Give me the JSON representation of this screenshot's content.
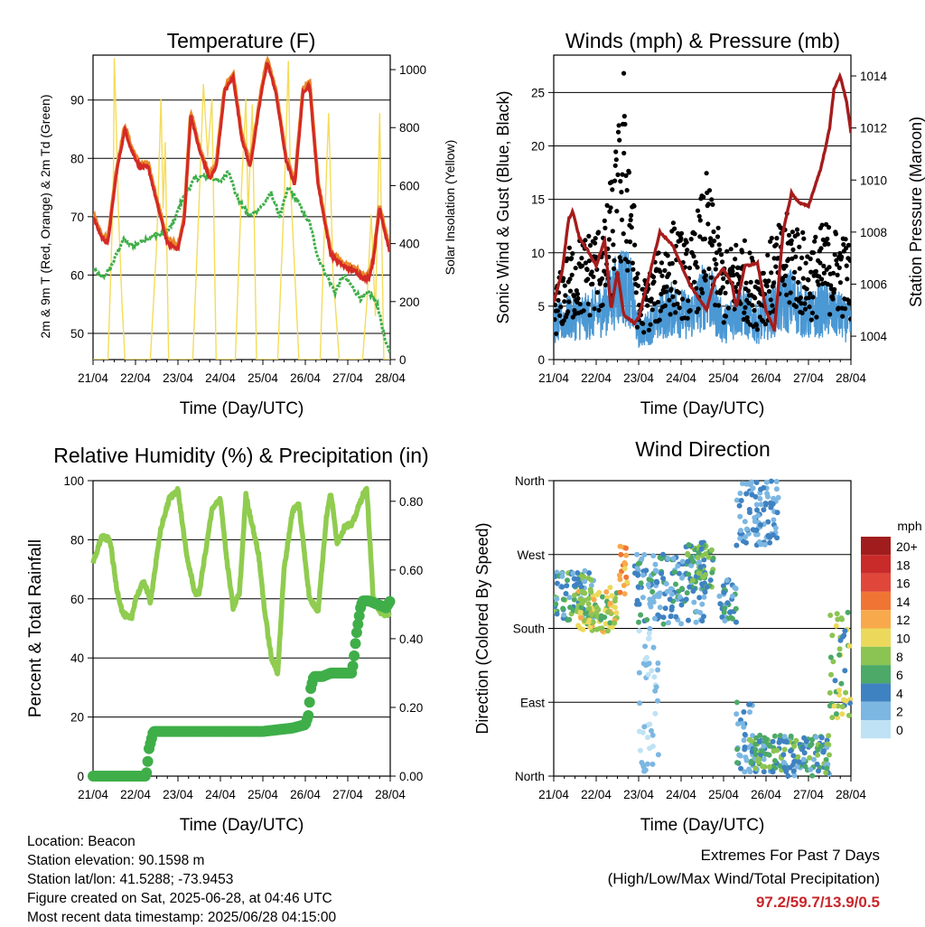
{
  "colors": {
    "temp2m": "#e8882a",
    "temp9m": "#d42a26",
    "dewpoint": "#3fae49",
    "solar": "#f5dc5a",
    "wind": "#4a98d4",
    "gust": "#000000",
    "pressure": "#a51c1c",
    "rh": "#8fcc4f",
    "precip": "#3fae49"
  },
  "x_ticks": [
    "21/04",
    "22/04",
    "23/04",
    "24/04",
    "25/04",
    "26/04",
    "27/04",
    "28/04"
  ],
  "speed_legend": {
    "unit": "mph",
    "labels": [
      "20+",
      "18",
      "16",
      "14",
      "12",
      "10",
      "8",
      "6",
      "4",
      "2",
      "0"
    ],
    "colors": [
      "#a11d1d",
      "#c92a2a",
      "#e0473a",
      "#f07534",
      "#f8a94c",
      "#ecd95c",
      "#8cc453",
      "#4ca967",
      "#3f82c2",
      "#7cb7e2",
      "#bfe2f5"
    ]
  },
  "chart_data": [
    {
      "type": "line",
      "title": "Temperature (F)",
      "xlabel": "Time (Day/UTC)",
      "ylabel": "2m & 9m T (Red, Orange) & 2m Td (Green)",
      "ylabel_right": "Solar Insolation (Yellow)",
      "xlim": [
        0,
        7
      ],
      "ylim": [
        45.5,
        97.7
      ],
      "ylim_right": [
        0,
        1050
      ],
      "yticks": [
        50,
        60,
        70,
        80,
        90
      ],
      "yticks_right": [
        0,
        200,
        400,
        600,
        800,
        1000
      ],
      "grid": true,
      "series": [
        {
          "key": "temp9m",
          "x": [
            0,
            0.2,
            0.35,
            0.55,
            0.75,
            0.9,
            1.1,
            1.3,
            1.5,
            1.75,
            2.0,
            2.15,
            2.3,
            2.5,
            2.75,
            2.9,
            3.1,
            3.3,
            3.5,
            3.7,
            3.95,
            4.1,
            4.3,
            4.55,
            4.75,
            4.95,
            5.1,
            5.3,
            5.6,
            5.9,
            6.2,
            6.35,
            6.5,
            6.6,
            6.75,
            6.9,
            7.0
          ],
          "y": [
            70.5,
            67,
            66,
            78,
            85.5,
            82,
            79,
            79,
            73,
            66,
            65,
            70,
            88,
            82,
            77,
            79,
            92,
            94.5,
            84,
            79,
            91,
            97,
            92,
            80,
            76,
            92,
            93,
            76,
            64,
            62,
            61,
            60,
            60,
            63,
            72,
            67,
            64.5
          ]
        },
        {
          "key": "dewpoint",
          "x": [
            0,
            0.2,
            0.4,
            0.7,
            0.9,
            1.2,
            1.5,
            1.7,
            1.9,
            2.1,
            2.4,
            2.7,
            3.0,
            3.2,
            3.35,
            3.5,
            3.7,
            4.0,
            4.2,
            4.4,
            4.6,
            4.8,
            5.0,
            5.1,
            5.3,
            5.5,
            5.7,
            5.9,
            6.1,
            6.3,
            6.5,
            6.7,
            6.9,
            7.0
          ],
          "y": [
            61,
            59.5,
            61,
            66,
            65,
            66,
            67,
            67,
            69,
            73,
            76.5,
            77,
            76,
            78,
            74,
            72,
            70,
            72,
            74,
            70,
            75,
            73,
            70,
            69,
            63,
            60,
            57,
            60,
            58,
            56,
            57,
            55,
            48,
            47
          ]
        },
        {
          "key": "solar",
          "axis": "right",
          "x": [
            0,
            0.35,
            0.43,
            0.48,
            0.5,
            0.55,
            0.6,
            0.68,
            0.75,
            1.35,
            1.5,
            1.6,
            1.65,
            1.7,
            1.78,
            2.35,
            2.5,
            2.6,
            2.7,
            2.8,
            2.9,
            3.35,
            3.5,
            3.6,
            3.65,
            3.75,
            3.85,
            4.35,
            4.5,
            4.6,
            4.65,
            4.75,
            4.85,
            5.35,
            5.45,
            5.55,
            5.65,
            5.8,
            6.35,
            6.45,
            6.55,
            6.65,
            6.75,
            6.85,
            7.0
          ],
          "y": [
            0,
            0,
            350,
            650,
            1040,
            800,
            500,
            200,
            0,
            0,
            400,
            900,
            520,
            750,
            0,
            0,
            550,
            950,
            700,
            900,
            0,
            0,
            600,
            900,
            500,
            880,
            0,
            0,
            550,
            1030,
            600,
            300,
            0,
            0,
            450,
            850,
            300,
            0,
            0,
            200,
            500,
            150,
            850,
            0,
            0
          ]
        }
      ]
    },
    {
      "type": "line",
      "title": "Winds (mph) & Pressure (mb)",
      "xlabel": "Time (Day/UTC)",
      "ylabel": "Sonic Wind & Gust (Blue, Black)",
      "ylabel_right": "Station Pressure (Maroon)",
      "xlim": [
        0,
        7
      ],
      "ylim": [
        0,
        28.5
      ],
      "ylim_right": [
        1003.1,
        1014.8
      ],
      "yticks": [
        0,
        5,
        10,
        15,
        20,
        25
      ],
      "yticks_right": [
        1004,
        1006,
        1008,
        1010,
        1012,
        1014
      ],
      "grid": true,
      "series": [
        {
          "key": "pressure",
          "axis": "right",
          "x": [
            0,
            0.2,
            0.35,
            0.45,
            0.6,
            0.8,
            1.0,
            1.2,
            1.35,
            1.5,
            1.65,
            1.9,
            2.0,
            2.2,
            2.5,
            2.8,
            3.2,
            3.6,
            3.8,
            4.0,
            4.2,
            4.3,
            4.5,
            4.8,
            5.0,
            5.2,
            5.4,
            5.6,
            5.8,
            6.0,
            6.3,
            6.5,
            6.6,
            6.75,
            6.9,
            7.0
          ],
          "y": [
            1005.3,
            1006.5,
            1008.5,
            1008.8,
            1007.8,
            1007.3,
            1006.7,
            1007.7,
            1005,
            1006.5,
            1004.8,
            1004.5,
            1004.7,
            1006,
            1008,
            1007.5,
            1006,
            1005,
            1006.2,
            1006.6,
            1006,
            1005.1,
            1006.7,
            1006.8,
            1005,
            1004.2,
            1008,
            1009.5,
            1009.1,
            1009,
            1010.5,
            1012,
            1013.5,
            1014,
            1013,
            1011.8
          ]
        },
        {
          "key": "wind",
          "desc": "sustained sonic wind, mostly 1-9 mph"
        },
        {
          "key": "gust",
          "desc": "gusts, peak 26.8 mph on 22/04"
        }
      ]
    },
    {
      "type": "line",
      "title": "Relative Humidity (%) & Precipitation (in)",
      "xlabel": "Time (Day/UTC)",
      "ylabel": "Percent & Total Rainfall",
      "xlim": [
        0,
        7
      ],
      "ylim": [
        0,
        100
      ],
      "ylim_right": [
        0,
        0.86
      ],
      "yticks": [
        0,
        20,
        40,
        60,
        80,
        100
      ],
      "yticks_right": [
        "0.00",
        "0.20",
        "0.40",
        "0.60",
        "0.80"
      ],
      "grid": true,
      "series": [
        {
          "key": "rh",
          "x": [
            0,
            0.2,
            0.4,
            0.55,
            0.7,
            0.9,
            1.0,
            1.2,
            1.35,
            1.6,
            1.8,
            2.0,
            2.2,
            2.4,
            2.5,
            2.8,
            3.0,
            3.15,
            3.3,
            3.45,
            3.6,
            3.9,
            4.05,
            4.2,
            4.35,
            4.5,
            4.7,
            4.85,
            5.1,
            5.3,
            5.5,
            5.6,
            5.75,
            5.95,
            6.1,
            6.35,
            6.45,
            6.6,
            6.8,
            7.0
          ],
          "y": [
            72,
            81,
            80,
            64,
            55,
            53,
            60,
            66,
            59,
            84,
            94,
            97,
            75,
            62,
            62,
            90,
            94,
            73,
            57,
            62,
            95,
            75,
            55,
            40,
            35,
            70,
            90,
            92,
            60,
            56,
            88,
            96,
            79,
            85,
            85,
            95,
            97,
            60,
            55,
            55
          ]
        },
        {
          "key": "precip",
          "axis": "right",
          "x": [
            0,
            1.25,
            1.28,
            1.32,
            1.38,
            1.42,
            2.0,
            3.0,
            4.0,
            4.7,
            5.0,
            5.08,
            5.12,
            5.2,
            5.4,
            5.6,
            5.8,
            6.1,
            6.15,
            6.2,
            6.25,
            6.3,
            6.35,
            6.5,
            6.7,
            6.9,
            7.0
          ],
          "y": [
            0,
            0,
            0.03,
            0.08,
            0.11,
            0.13,
            0.13,
            0.13,
            0.13,
            0.14,
            0.15,
            0.18,
            0.25,
            0.29,
            0.29,
            0.3,
            0.3,
            0.3,
            0.35,
            0.41,
            0.45,
            0.49,
            0.51,
            0.51,
            0.5,
            0.49,
            0.51
          ]
        }
      ]
    },
    {
      "type": "scatter",
      "title": "Wind Direction",
      "xlabel": "Time (Day/UTC)",
      "ylabel": "Direction (Colored By Speed)",
      "xlim": [
        0,
        7
      ],
      "ylim": [
        0,
        360
      ],
      "ytick_labels": [
        "North",
        "East",
        "South",
        "West",
        "North"
      ],
      "grid": true,
      "clusters": [
        {
          "x": [
            0,
            1.0
          ],
          "dir": [
            190,
            250
          ],
          "speed": [
            2,
            8
          ]
        },
        {
          "x": [
            0.55,
            1.5
          ],
          "dir": [
            175,
            230
          ],
          "speed": [
            6,
            12
          ]
        },
        {
          "x": [
            1.55,
            1.75
          ],
          "dir": [
            215,
            280
          ],
          "speed": [
            10,
            15
          ]
        },
        {
          "x": [
            1.9,
            3.6
          ],
          "dir": [
            185,
            270
          ],
          "speed": [
            1,
            6
          ]
        },
        {
          "x": [
            2.0,
            2.5
          ],
          "dir": [
            5,
            180
          ],
          "speed": [
            0,
            3
          ]
        },
        {
          "x": [
            3.1,
            3.8
          ],
          "dir": [
            230,
            285
          ],
          "speed": [
            4,
            9
          ]
        },
        {
          "x": [
            3.9,
            4.3
          ],
          "dir": [
            185,
            240
          ],
          "speed": [
            2,
            6
          ]
        },
        {
          "x": [
            4.3,
            4.7
          ],
          "dir": [
            5,
            90
          ],
          "speed": [
            1,
            6
          ]
        },
        {
          "x": [
            4.6,
            5.4
          ],
          "dir": [
            5,
            50
          ],
          "speed": [
            2,
            9
          ]
        },
        {
          "x": [
            5.4,
            6.5
          ],
          "dir": [
            0,
            50
          ],
          "speed": [
            2,
            8
          ]
        },
        {
          "x": [
            6.5,
            7.0
          ],
          "dir": [
            70,
            200
          ],
          "speed": [
            3,
            10
          ]
        },
        {
          "x": [
            4.3,
            5.3
          ],
          "dir": [
            280,
            360
          ],
          "speed": [
            1,
            5
          ]
        }
      ]
    }
  ],
  "footer": {
    "location": "Location: Beacon",
    "elevation": "Station elevation: 90.1598 m",
    "latlon": "Station lat/lon: 41.5288; -73.9453",
    "created": "Figure created on Sat, 2025-06-28, at 04:46 UTC",
    "recent": "Most recent data timestamp: 2025/06/28 04:15:00",
    "extremes_title": "Extremes For Past 7 Days",
    "extremes_sub": "(High/Low/Max Wind/Total Precipitation)",
    "extremes_values": "97.2/59.7/13.9/0.5"
  }
}
